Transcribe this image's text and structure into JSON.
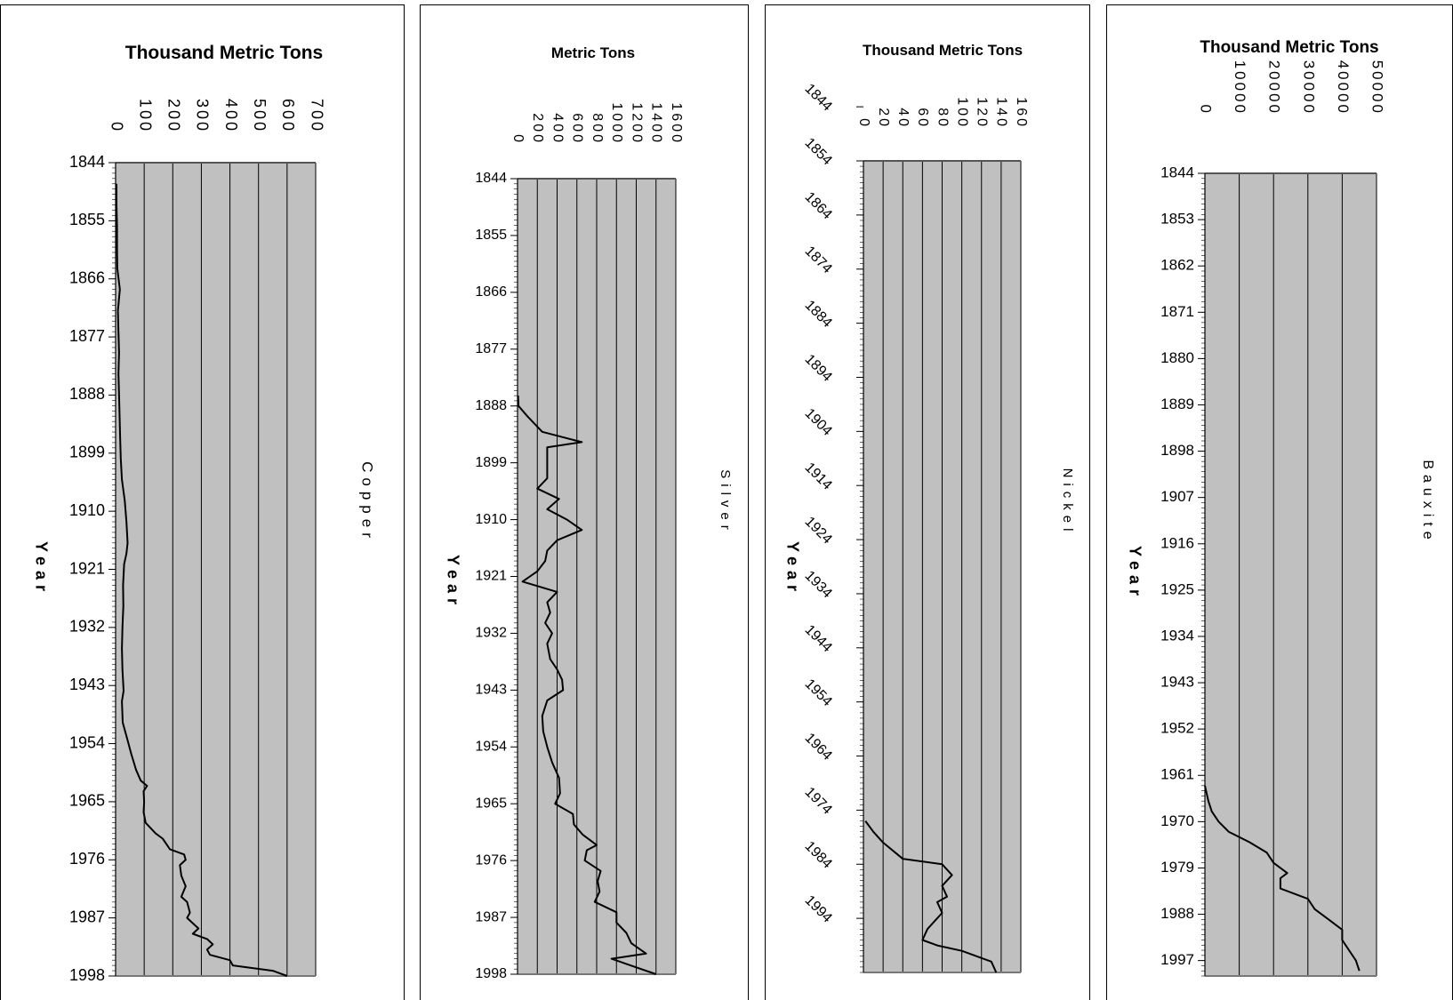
{
  "chart_data": [
    {
      "type": "line",
      "title": "Thousand Metric Tons",
      "ylabel": "Year",
      "series_label": "Copper",
      "y_ticks": [
        "1844",
        "1855",
        "1866",
        "1877",
        "1888",
        "1899",
        "1910",
        "1921",
        "1932",
        "1943",
        "1954",
        "1965",
        "1976",
        "1987",
        "1998"
      ],
      "x_ticks": [
        "0",
        "100",
        "200",
        "300",
        "400",
        "500",
        "600",
        "700"
      ],
      "xlim": [
        0,
        700
      ],
      "ylim": [
        1844,
        1998
      ],
      "series": [
        {
          "points": [
            [
              1848,
              3
            ],
            [
              1852,
              3
            ],
            [
              1856,
              5
            ],
            [
              1860,
              5
            ],
            [
              1864,
              6
            ],
            [
              1868,
              15
            ],
            [
              1872,
              8
            ],
            [
              1876,
              10
            ],
            [
              1880,
              12
            ],
            [
              1884,
              10
            ],
            [
              1888,
              12
            ],
            [
              1892,
              14
            ],
            [
              1896,
              16
            ],
            [
              1900,
              18
            ],
            [
              1904,
              22
            ],
            [
              1908,
              32
            ],
            [
              1912,
              38
            ],
            [
              1916,
              42
            ],
            [
              1918,
              38
            ],
            [
              1920,
              30
            ],
            [
              1924,
              26
            ],
            [
              1928,
              27
            ],
            [
              1932,
              24
            ],
            [
              1936,
              22
            ],
            [
              1940,
              24
            ],
            [
              1944,
              28
            ],
            [
              1946,
              22
            ],
            [
              1950,
              25
            ],
            [
              1953,
              40
            ],
            [
              1956,
              55
            ],
            [
              1959,
              72
            ],
            [
              1961,
              88
            ],
            [
              1962,
              110
            ],
            [
              1963,
              98
            ],
            [
              1965,
              100
            ],
            [
              1967,
              98
            ],
            [
              1969,
              105
            ],
            [
              1971,
              140
            ],
            [
              1972,
              165
            ],
            [
              1974,
              190
            ],
            [
              1975,
              240
            ],
            [
              1976,
              245
            ],
            [
              1977,
              225
            ],
            [
              1979,
              230
            ],
            [
              1981,
              245
            ],
            [
              1983,
              230
            ],
            [
              1984,
              250
            ],
            [
              1986,
              260
            ],
            [
              1987,
              250
            ],
            [
              1988,
              270
            ],
            [
              1989,
              290
            ],
            [
              1990,
              270
            ],
            [
              1991,
              320
            ],
            [
              1992,
              340
            ],
            [
              1993,
              320
            ],
            [
              1994,
              330
            ],
            [
              1995,
              400
            ],
            [
              1996,
              410
            ],
            [
              1997,
              550
            ],
            [
              1998,
              600
            ]
          ]
        }
      ]
    },
    {
      "type": "line",
      "title": "Metric Tons",
      "ylabel": "Year",
      "series_label": "Silver",
      "y_ticks": [
        "1844",
        "1855",
        "1866",
        "1877",
        "1888",
        "1899",
        "1910",
        "1921",
        "1932",
        "1943",
        "1954",
        "1965",
        "1976",
        "1987",
        "1998"
      ],
      "x_ticks": [
        "0",
        "200",
        "400",
        "600",
        "800",
        "1000",
        "1200",
        "1400",
        "1600"
      ],
      "xlim": [
        0,
        1600
      ],
      "ylim": [
        1844,
        1998
      ],
      "series": [
        {
          "points": [
            [
              1886,
              5
            ],
            [
              1888,
              10
            ],
            [
              1890,
              100
            ],
            [
              1893,
              250
            ],
            [
              1895,
              650
            ],
            [
              1896,
              300
            ],
            [
              1898,
              300
            ],
            [
              1900,
              300
            ],
            [
              1902,
              300
            ],
            [
              1904,
              200
            ],
            [
              1906,
              420
            ],
            [
              1908,
              300
            ],
            [
              1910,
              500
            ],
            [
              1912,
              650
            ],
            [
              1914,
              400
            ],
            [
              1916,
              300
            ],
            [
              1918,
              280
            ],
            [
              1920,
              200
            ],
            [
              1922,
              50
            ],
            [
              1924,
              400
            ],
            [
              1926,
              300
            ],
            [
              1928,
              330
            ],
            [
              1930,
              280
            ],
            [
              1932,
              350
            ],
            [
              1934,
              300
            ],
            [
              1937,
              330
            ],
            [
              1939,
              400
            ],
            [
              1941,
              450
            ],
            [
              1943,
              460
            ],
            [
              1945,
              300
            ],
            [
              1948,
              250
            ],
            [
              1951,
              260
            ],
            [
              1954,
              300
            ],
            [
              1957,
              350
            ],
            [
              1960,
              420
            ],
            [
              1963,
              430
            ],
            [
              1965,
              380
            ],
            [
              1967,
              560
            ],
            [
              1969,
              570
            ],
            [
              1971,
              660
            ],
            [
              1973,
              800
            ],
            [
              1974,
              700
            ],
            [
              1976,
              680
            ],
            [
              1978,
              840
            ],
            [
              1980,
              810
            ],
            [
              1982,
              830
            ],
            [
              1984,
              780
            ],
            [
              1986,
              1000
            ],
            [
              1988,
              1000
            ],
            [
              1990,
              1100
            ],
            [
              1992,
              1150
            ],
            [
              1994,
              1300
            ],
            [
              1995,
              950
            ],
            [
              1996,
              1100
            ],
            [
              1998,
              1400
            ]
          ]
        }
      ]
    },
    {
      "type": "line",
      "title": "Thousand Metric Tons",
      "ylabel": "Year",
      "series_label": "Nickel",
      "y_ticks": [
        "1844",
        "1854",
        "1864",
        "1874",
        "1884",
        "1894",
        "1904",
        "1914",
        "1924",
        "1934",
        "1944",
        "1954",
        "1964",
        "1974",
        "1984",
        "1994"
      ],
      "x_ticks": [
        "0",
        "20",
        "40",
        "60",
        "80",
        "100",
        "120",
        "140",
        "160"
      ],
      "xlim": [
        0,
        160
      ],
      "ylim": [
        1854,
        2004
      ],
      "series": [
        {
          "points": [
            [
              1976,
              2
            ],
            [
              1978,
              10
            ],
            [
              1980,
              20
            ],
            [
              1983,
              40
            ],
            [
              1984,
              80
            ],
            [
              1986,
              90
            ],
            [
              1988,
              80
            ],
            [
              1990,
              85
            ],
            [
              1991,
              75
            ],
            [
              1993,
              80
            ],
            [
              1995,
              70
            ],
            [
              1996,
              65
            ],
            [
              1998,
              60
            ],
            [
              1999,
              75
            ],
            [
              2000,
              100
            ],
            [
              2002,
              130
            ],
            [
              2004,
              135
            ]
          ]
        }
      ]
    },
    {
      "type": "line",
      "title": "Thousand Metric Tons",
      "ylabel": "Year",
      "series_label": "Bauxite",
      "y_ticks": [
        "1844",
        "1853",
        "1862",
        "1871",
        "1880",
        "1889",
        "1898",
        "1907",
        "1916",
        "1925",
        "1934",
        "1943",
        "1952",
        "1961",
        "1970",
        "1979",
        "1988",
        "1997"
      ],
      "x_ticks": [
        "0",
        "10000",
        "20000",
        "30000",
        "40000",
        "50000"
      ],
      "xlim": [
        0,
        50000
      ],
      "ylim": [
        1844,
        2000
      ],
      "series": [
        {
          "points": [
            [
              1963,
              0
            ],
            [
              1966,
              1000
            ],
            [
              1968,
              2000
            ],
            [
              1970,
              4000
            ],
            [
              1972,
              7000
            ],
            [
              1974,
              13000
            ],
            [
              1976,
              18000
            ],
            [
              1978,
              20000
            ],
            [
              1980,
              24000
            ],
            [
              1981,
              22000
            ],
            [
              1983,
              22000
            ],
            [
              1985,
              30000
            ],
            [
              1987,
              32000
            ],
            [
              1989,
              36000
            ],
            [
              1991,
              40000
            ],
            [
              1993,
              40000
            ],
            [
              1995,
              42000
            ],
            [
              1997,
              44000
            ],
            [
              1999,
              45000
            ]
          ]
        }
      ]
    }
  ]
}
